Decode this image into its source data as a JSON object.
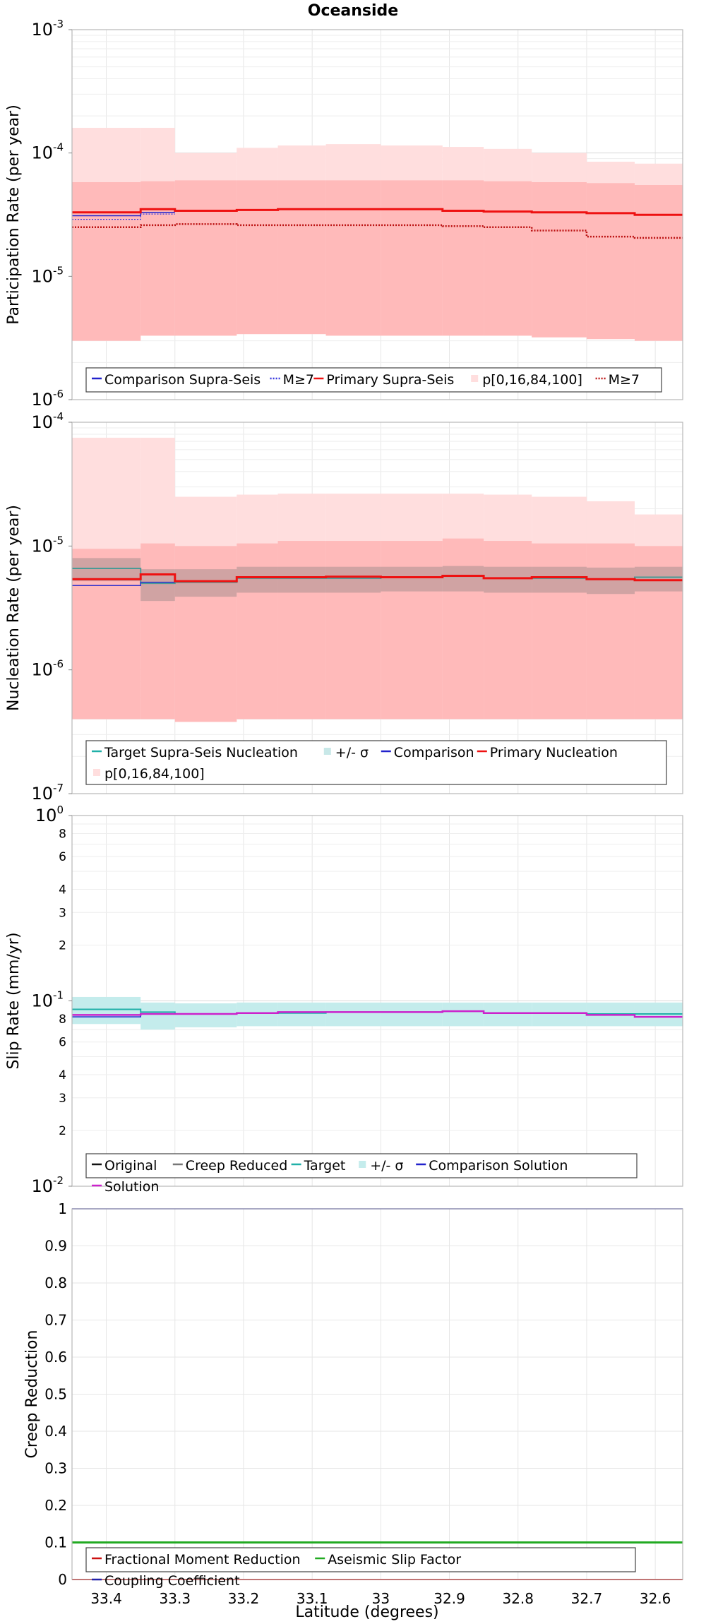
{
  "title": "Oceanside",
  "xlabel": "Latitude (degrees)",
  "x_ticks": [
    "33.4",
    "33.3",
    "33.2",
    "33.1",
    "33",
    "32.9",
    "32.8",
    "32.7",
    "32.6"
  ],
  "chart_data": [
    {
      "type": "line",
      "title": "Oceanside",
      "ylabel": "Participation Rate (per year)",
      "yscale": "log",
      "ylim": [
        1e-06,
        0.001
      ],
      "y_ticks": [
        {
          "base": "10",
          "exp": "-6"
        },
        {
          "base": "10",
          "exp": "-5"
        },
        {
          "base": "10",
          "exp": "-4"
        },
        {
          "base": "10",
          "exp": "-3"
        }
      ],
      "legend_position": "bottom",
      "x_edges": [
        33.45,
        33.35,
        33.3,
        33.21,
        33.15,
        33.08,
        33.0,
        32.91,
        32.85,
        32.78,
        32.7,
        32.63,
        32.56
      ],
      "bands": [
        {
          "name": "p[0,16,84,100]",
          "color": "#ffdede",
          "low": [
            3e-06,
            3.3e-06,
            3.3e-06,
            3.4e-06,
            3.4e-06,
            3.3e-06,
            3.3e-06,
            3.3e-06,
            3.3e-06,
            3.2e-06,
            3.1e-06,
            3e-06
          ],
          "high": [
            0.00016,
            0.00016,
            0.0001,
            0.00011,
            0.000115,
            0.000118,
            0.000115,
            0.000112,
            0.000108,
            0.0001,
            8.5e-05,
            8.2e-05
          ]
        },
        {
          "name": "",
          "color": "#ffbaba",
          "low": [
            3e-06,
            3.3e-06,
            3.3e-06,
            3.4e-06,
            3.4e-06,
            3.3e-06,
            3.3e-06,
            3.3e-06,
            3.3e-06,
            3.2e-06,
            3.1e-06,
            3e-06
          ],
          "high": [
            5.8e-05,
            5.9e-05,
            6e-05,
            6e-05,
            6e-05,
            6e-05,
            6e-05,
            6e-05,
            5.9e-05,
            5.8e-05,
            5.7e-05,
            5.5e-05
          ]
        }
      ],
      "series": [
        {
          "name": "Comparison Supra-Seis",
          "color": "#2222cc",
          "style": "solid",
          "width": 1.5,
          "values": [
            3.1e-05,
            3.3e-05,
            null,
            null,
            null,
            null,
            null,
            null,
            null,
            null,
            null,
            null
          ]
        },
        {
          "name": "M≥7",
          "color": "#3333dd",
          "style": "dotted",
          "width": 1.2,
          "values": [
            2.9e-05,
            3.2e-05,
            null,
            null,
            null,
            null,
            null,
            null,
            null,
            null,
            null,
            null
          ]
        },
        {
          "name": "Primary Supra-Seis",
          "color": "#ee1111",
          "style": "solid",
          "width": 3,
          "values": [
            3.3e-05,
            3.5e-05,
            3.4e-05,
            3.45e-05,
            3.5e-05,
            3.5e-05,
            3.5e-05,
            3.4e-05,
            3.35e-05,
            3.3e-05,
            3.25e-05,
            3.15e-05
          ]
        },
        {
          "name": "M≥7",
          "color": "#bb1111",
          "style": "dotted",
          "width": 2.5,
          "values": [
            2.5e-05,
            2.6e-05,
            2.65e-05,
            2.6e-05,
            2.6e-05,
            2.6e-05,
            2.6e-05,
            2.55e-05,
            2.5e-05,
            2.35e-05,
            2.1e-05,
            2.05e-05
          ]
        }
      ],
      "legend": [
        {
          "label": "Comparison Supra-Seis",
          "color": "#2222cc",
          "style": "solid"
        },
        {
          "label": "M≥7",
          "color": "#3333dd",
          "style": "dotted"
        },
        {
          "label": "Primary Supra-Seis",
          "color": "#ee1111",
          "style": "solid"
        },
        {
          "label": "p[0,16,84,100]",
          "color": "#ffdede",
          "style": "box"
        },
        {
          "label": "M≥7",
          "color": "#bb1111",
          "style": "dotted"
        }
      ]
    },
    {
      "type": "line",
      "ylabel": "Nucleation Rate (per year)",
      "yscale": "log",
      "ylim": [
        1e-07,
        0.0001
      ],
      "y_ticks": [
        {
          "base": "10",
          "exp": "-7"
        },
        {
          "base": "10",
          "exp": "-6"
        },
        {
          "base": "10",
          "exp": "-5"
        },
        {
          "base": "10",
          "exp": "-4"
        }
      ],
      "legend_position": "bottom",
      "x_edges": [
        33.45,
        33.35,
        33.3,
        33.21,
        33.15,
        33.08,
        33.0,
        32.91,
        32.85,
        32.78,
        32.7,
        32.63,
        32.56
      ],
      "bands": [
        {
          "name": "p[0,16,84,100]",
          "color": "#ffdede",
          "low": [
            4e-07,
            4e-07,
            3.8e-07,
            4e-07,
            4e-07,
            4e-07,
            4e-07,
            4e-07,
            4e-07,
            4e-07,
            4e-07,
            4e-07
          ],
          "high": [
            7.5e-05,
            7.5e-05,
            2.5e-05,
            2.6e-05,
            2.65e-05,
            2.65e-05,
            2.65e-05,
            2.65e-05,
            2.6e-05,
            2.5e-05,
            2.3e-05,
            1.8e-05
          ]
        },
        {
          "name": "",
          "color": "#ffbaba",
          "low": [
            4e-07,
            4e-07,
            3.8e-07,
            4e-07,
            4e-07,
            4e-07,
            4e-07,
            4e-07,
            4e-07,
            4e-07,
            4e-07,
            4e-07
          ],
          "high": [
            9.5e-06,
            1.05e-05,
            1e-05,
            1.05e-05,
            1.1e-05,
            1.1e-05,
            1.1e-05,
            1.15e-05,
            1.1e-05,
            1.05e-05,
            1.05e-05,
            1e-05
          ]
        },
        {
          "name": "+/- σ",
          "color": "rgba(120,120,120,0.35)",
          "low": [
            5.2e-06,
            3.6e-06,
            3.9e-06,
            4.2e-06,
            4.2e-06,
            4.2e-06,
            4.3e-06,
            4.3e-06,
            4.2e-06,
            4.2e-06,
            4.1e-06,
            4.3e-06
          ],
          "high": [
            8e-06,
            6.5e-06,
            6.5e-06,
            6.8e-06,
            6.8e-06,
            6.8e-06,
            6.8e-06,
            6.9e-06,
            6.8e-06,
            6.8e-06,
            6.7e-06,
            6.8e-06
          ]
        }
      ],
      "series": [
        {
          "name": "Target Supra-Seis Nucleation",
          "color": "#4a9a96",
          "style": "solid",
          "width": 2,
          "values": [
            6.6e-06,
            5e-06,
            5.1e-06,
            5.5e-06,
            5.5e-06,
            5.5e-06,
            5.6e-06,
            5.7e-06,
            5.5e-06,
            5.5e-06,
            5.4e-06,
            5.6e-06
          ]
        },
        {
          "name": "Comparison",
          "color": "#3333cc",
          "style": "solid",
          "width": 1.5,
          "values": [
            4.8e-06,
            5.1e-06,
            null,
            null,
            null,
            null,
            null,
            null,
            null,
            null,
            null,
            null
          ]
        },
        {
          "name": "Primary Nucleation",
          "color": "#ee1111",
          "style": "solid",
          "width": 3,
          "values": [
            5.4e-06,
            5.9e-06,
            5.2e-06,
            5.6e-06,
            5.6e-06,
            5.65e-06,
            5.6e-06,
            5.75e-06,
            5.5e-06,
            5.6e-06,
            5.4e-06,
            5.3e-06
          ]
        }
      ],
      "legend": [
        {
          "label": "Target Supra-Seis Nucleation",
          "color": "#20b0a8",
          "style": "solid"
        },
        {
          "label": "+/- σ",
          "color": "#c8e8e8",
          "style": "box"
        },
        {
          "label": "Comparison",
          "color": "#2222cc",
          "style": "solid"
        },
        {
          "label": "Primary Nucleation",
          "color": "#ee1111",
          "style": "solid"
        },
        {
          "label": "p[0,16,84,100]",
          "color": "#ffdede",
          "style": "box"
        }
      ]
    },
    {
      "type": "line",
      "ylabel": "Slip Rate (mm/yr)",
      "yscale": "log",
      "ylim": [
        0.01,
        1
      ],
      "y_ticks": [
        {
          "base": "10",
          "exp": "-2"
        },
        {
          "base": "10",
          "exp": "-1"
        },
        {
          "base": "10",
          "exp": "0"
        }
      ],
      "y_minor_labels": [
        "2",
        "3",
        "4",
        "6",
        "8",
        "2",
        "3",
        "4",
        "6",
        "8"
      ],
      "legend_position": "bottom",
      "x_edges": [
        33.45,
        33.35,
        33.3,
        33.21,
        33.15,
        33.08,
        33.0,
        32.91,
        32.85,
        32.78,
        32.7,
        32.63,
        32.56
      ],
      "bands": [
        {
          "name": "+/- σ",
          "color": "#c4ecec",
          "low": [
            0.075,
            0.07,
            0.072,
            0.073,
            0.073,
            0.073,
            0.073,
            0.073,
            0.073,
            0.073,
            0.073,
            0.073
          ],
          "high": [
            0.105,
            0.098,
            0.097,
            0.098,
            0.098,
            0.098,
            0.098,
            0.098,
            0.098,
            0.098,
            0.098,
            0.098
          ]
        }
      ],
      "series": [
        {
          "name": "Target",
          "color": "#20b0a8",
          "style": "solid",
          "width": 2,
          "values": [
            0.09,
            0.087,
            0.085,
            0.086,
            0.086,
            0.087,
            0.087,
            0.088,
            0.086,
            0.086,
            0.085,
            0.085
          ]
        },
        {
          "name": "Comparison Solution",
          "color": "#2222cc",
          "style": "solid",
          "width": 1.5,
          "values": [
            0.082,
            0.085,
            null,
            null,
            null,
            null,
            null,
            null,
            null,
            null,
            null,
            null
          ]
        },
        {
          "name": "Solution",
          "color": "#cc22cc",
          "style": "solid",
          "width": 2.5,
          "values": [
            0.084,
            0.085,
            0.085,
            0.086,
            0.087,
            0.087,
            0.087,
            0.088,
            0.086,
            0.086,
            0.084,
            0.082
          ]
        }
      ],
      "legend": [
        {
          "label": "Original",
          "color": "#111111",
          "style": "solid"
        },
        {
          "label": "Creep Reduced",
          "color": "#777777",
          "style": "solid"
        },
        {
          "label": "Target",
          "color": "#20b0a8",
          "style": "solid"
        },
        {
          "label": "+/- σ",
          "color": "#c4ecec",
          "style": "box"
        },
        {
          "label": "Comparison Solution",
          "color": "#2222cc",
          "style": "solid"
        },
        {
          "label": "Solution",
          "color": "#cc22cc",
          "style": "solid"
        }
      ]
    },
    {
      "type": "line",
      "ylabel": "Creep Reduction",
      "yscale": "linear",
      "ylim": [
        0,
        1
      ],
      "y_ticks": [
        "0",
        "0.1",
        "0.2",
        "0.3",
        "0.4",
        "0.5",
        "0.6",
        "0.7",
        "0.8",
        "0.9",
        "1"
      ],
      "legend_position": "bottom",
      "series": [
        {
          "name": "Fractional Moment Reduction",
          "color": "#cc1111",
          "style": "solid",
          "width": 2,
          "values": [
            0,
            0
          ]
        },
        {
          "name": "Aseismic Slip Factor",
          "color": "#22aa22",
          "style": "solid",
          "width": 3,
          "values": [
            0.1,
            0.1
          ]
        },
        {
          "name": "Coupling Coefficient",
          "color": "#2222aa",
          "style": "solid",
          "width": 1.5,
          "values": [
            1,
            1
          ]
        }
      ],
      "legend": [
        {
          "label": "Fractional Moment Reduction",
          "color": "#cc1111",
          "style": "solid"
        },
        {
          "label": "Aseismic Slip Factor",
          "color": "#22aa22",
          "style": "solid"
        },
        {
          "label": "Coupling Coefficient",
          "color": "#2222aa",
          "style": "solid"
        }
      ]
    }
  ]
}
